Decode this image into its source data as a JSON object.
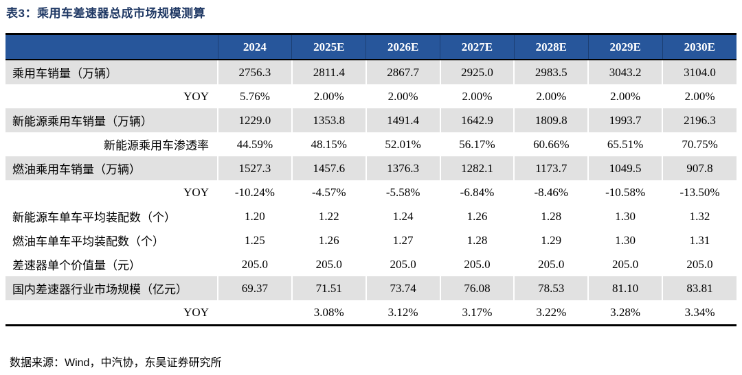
{
  "title": "表3：乘用车差速器总成市场规模测算",
  "source_note": "数据来源：Wind，中汽协，东吴证券研究所",
  "colors": {
    "header_bg": "#27569B",
    "title_text": "#1F3864",
    "band_gray": "#E1E1E1",
    "border_black": "#000000",
    "header_text": "#FFFFFF"
  },
  "table": {
    "label_column_header": "",
    "columns": [
      "2024",
      "2025E",
      "2026E",
      "2027E",
      "2028E",
      "2029E",
      "2030E"
    ],
    "rows": [
      {
        "label": "乘用车销量（万辆）",
        "align": "left",
        "band": "gray",
        "values": [
          "2756.3",
          "2811.4",
          "2867.7",
          "2925.0",
          "2983.5",
          "3043.2",
          "3104.0"
        ]
      },
      {
        "label": "YOY",
        "align": "right",
        "band": "white",
        "values": [
          "5.76%",
          "2.00%",
          "2.00%",
          "2.00%",
          "2.00%",
          "2.00%",
          "2.00%"
        ]
      },
      {
        "label": "新能源乘用车销量（万辆）",
        "align": "left",
        "band": "gray",
        "values": [
          "1229.0",
          "1353.8",
          "1491.4",
          "1642.9",
          "1809.8",
          "1993.7",
          "2196.3"
        ]
      },
      {
        "label": "新能源乘用车渗透率",
        "align": "right",
        "band": "white",
        "values": [
          "44.59%",
          "48.15%",
          "52.01%",
          "56.17%",
          "60.66%",
          "65.51%",
          "70.75%"
        ]
      },
      {
        "label": "燃油乘用车销量（万辆）",
        "align": "left",
        "band": "gray",
        "values": [
          "1527.3",
          "1457.6",
          "1376.3",
          "1282.1",
          "1173.7",
          "1049.5",
          "907.8"
        ]
      },
      {
        "label": "YOY",
        "align": "right",
        "band": "white",
        "values": [
          "-10.24%",
          "-4.57%",
          "-5.58%",
          "-6.84%",
          "-8.46%",
          "-10.58%",
          "-13.50%"
        ]
      },
      {
        "label": "新能源车单车平均装配数（个）",
        "align": "left",
        "band": "white",
        "values": [
          "1.20",
          "1.22",
          "1.24",
          "1.26",
          "1.28",
          "1.30",
          "1.32"
        ]
      },
      {
        "label": "燃油车单车平均装配数（个）",
        "align": "left",
        "band": "white",
        "values": [
          "1.25",
          "1.26",
          "1.27",
          "1.28",
          "1.29",
          "1.30",
          "1.31"
        ]
      },
      {
        "label": "差速器单个价值量（元）",
        "align": "left",
        "band": "white",
        "values": [
          "205.0",
          "205.0",
          "205.0",
          "205.0",
          "205.0",
          "205.0",
          "205.0"
        ]
      },
      {
        "label": "国内差速器行业市场规模（亿元）",
        "align": "left",
        "band": "gray",
        "values": [
          "69.37",
          "71.51",
          "73.74",
          "76.08",
          "78.53",
          "81.10",
          "83.81"
        ]
      },
      {
        "label": "YOY",
        "align": "right",
        "band": "white",
        "values": [
          "",
          "3.08%",
          "3.12%",
          "3.17%",
          "3.22%",
          "3.28%",
          "3.34%"
        ]
      }
    ]
  }
}
